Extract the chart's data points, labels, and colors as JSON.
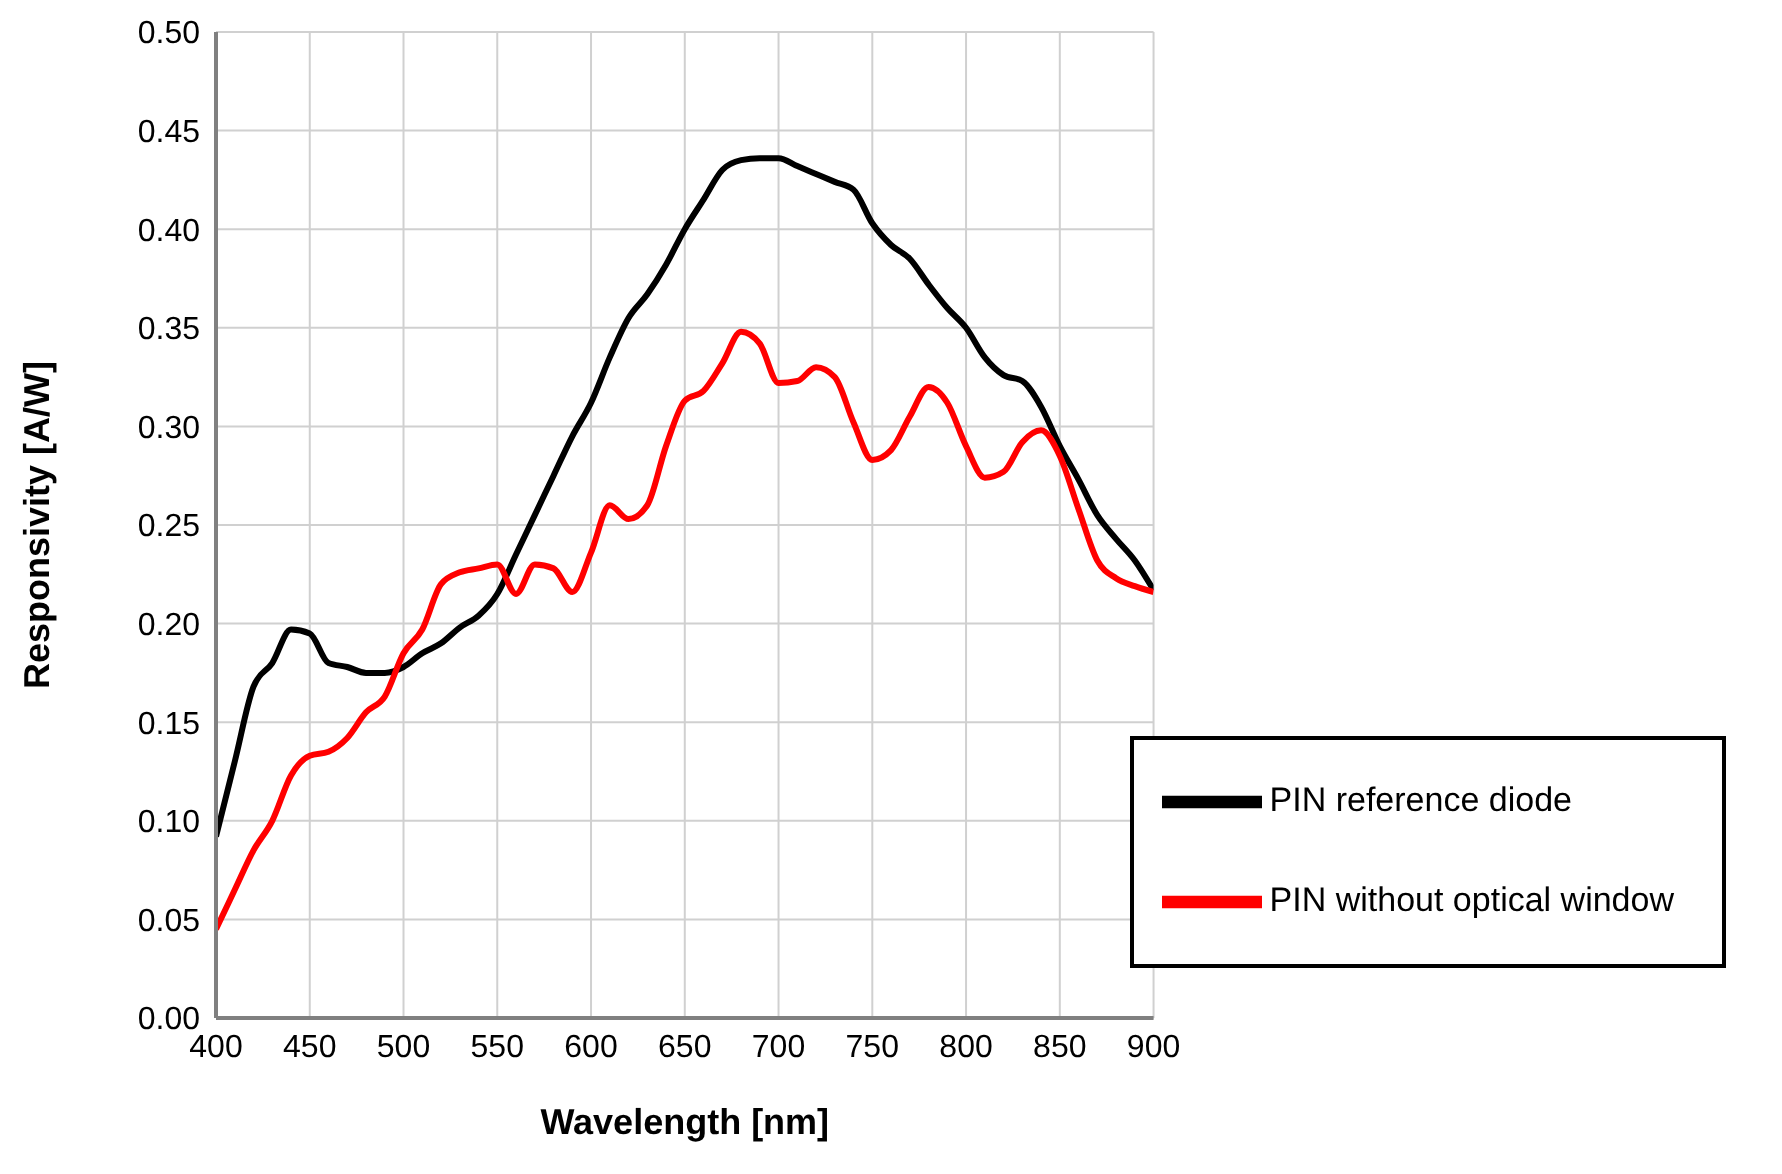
{
  "chart_data": {
    "type": "line",
    "xlabel": "Wavelength [nm]",
    "ylabel": "Responsivity [A/W]",
    "x": [
      400,
      410,
      420,
      430,
      440,
      450,
      460,
      470,
      480,
      490,
      500,
      510,
      520,
      530,
      540,
      550,
      560,
      570,
      580,
      590,
      600,
      610,
      620,
      630,
      640,
      650,
      660,
      670,
      680,
      690,
      700,
      710,
      720,
      730,
      740,
      750,
      760,
      770,
      780,
      790,
      800,
      810,
      820,
      830,
      840,
      850,
      860,
      870,
      880,
      890,
      900
    ],
    "series": [
      {
        "name": "PIN reference diode",
        "color": "#000000",
        "values": [
          0.092,
          0.13,
          0.168,
          0.18,
          0.197,
          0.195,
          0.18,
          0.178,
          0.175,
          0.175,
          0.178,
          0.185,
          0.19,
          0.198,
          0.204,
          0.215,
          0.235,
          0.255,
          0.275,
          0.295,
          0.312,
          0.335,
          0.355,
          0.367,
          0.382,
          0.4,
          0.415,
          0.43,
          0.435,
          0.436,
          0.436,
          0.432,
          0.428,
          0.424,
          0.42,
          0.403,
          0.392,
          0.385,
          0.372,
          0.36,
          0.35,
          0.335,
          0.326,
          0.323,
          0.31,
          0.29,
          0.273,
          0.255,
          0.243,
          0.232,
          0.217
        ]
      },
      {
        "name": "PIN without optical window",
        "color": "#ff0000",
        "values": [
          0.045,
          0.065,
          0.085,
          0.1,
          0.123,
          0.133,
          0.135,
          0.142,
          0.155,
          0.163,
          0.185,
          0.197,
          0.22,
          0.226,
          0.228,
          0.23,
          0.215,
          0.23,
          0.228,
          0.216,
          0.236,
          0.26,
          0.253,
          0.26,
          0.29,
          0.313,
          0.318,
          0.332,
          0.348,
          0.342,
          0.322,
          0.323,
          0.33,
          0.325,
          0.302,
          0.283,
          0.288,
          0.305,
          0.32,
          0.312,
          0.29,
          0.274,
          0.277,
          0.292,
          0.298,
          0.285,
          0.258,
          0.232,
          0.223,
          0.219,
          0.216
        ]
      }
    ],
    "xlim": [
      400,
      900
    ],
    "xticks": [
      400,
      450,
      500,
      550,
      600,
      650,
      700,
      750,
      800,
      850,
      900
    ],
    "ylim": [
      0,
      0.5
    ],
    "yticks": [
      {
        "value": 0,
        "label": "0.00"
      },
      {
        "value": 0.05,
        "label": "0.05"
      },
      {
        "value": 0.1,
        "label": "0.10"
      },
      {
        "value": 0.15,
        "label": "0.15"
      },
      {
        "value": 0.2,
        "label": "0.20"
      },
      {
        "value": 0.25,
        "label": "0.25"
      },
      {
        "value": 0.3,
        "label": "0.30"
      },
      {
        "value": 0.35,
        "label": "0.35"
      },
      {
        "value": 0.4,
        "label": "0.40"
      },
      {
        "value": 0.45,
        "label": "0.45"
      },
      {
        "value": 0.5,
        "label": "0.50"
      }
    ],
    "grid": true,
    "legend": "bottom right",
    "marker": "none",
    "line_style": "solid"
  }
}
